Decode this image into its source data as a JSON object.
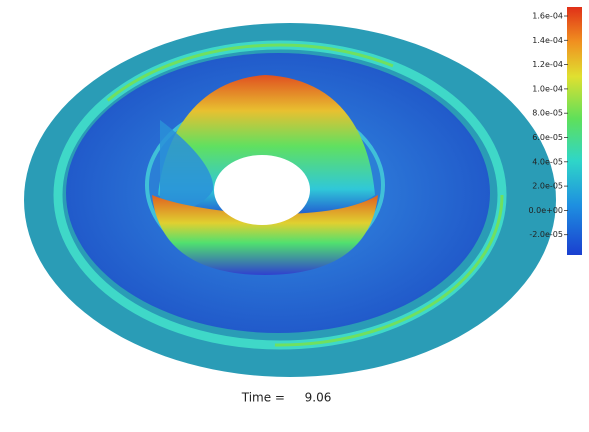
{
  "colorbar": {
    "ticks": [
      "1.6e-04",
      "1.4e-04",
      "1.2e-04",
      "1.0e-04",
      "8.0e-05",
      "6.0e-05",
      "4.0e-05",
      "2.0e-05",
      "0.0e+00",
      "-2.0e-05"
    ]
  },
  "caption": {
    "label": "Time =",
    "value": "9.06"
  }
}
